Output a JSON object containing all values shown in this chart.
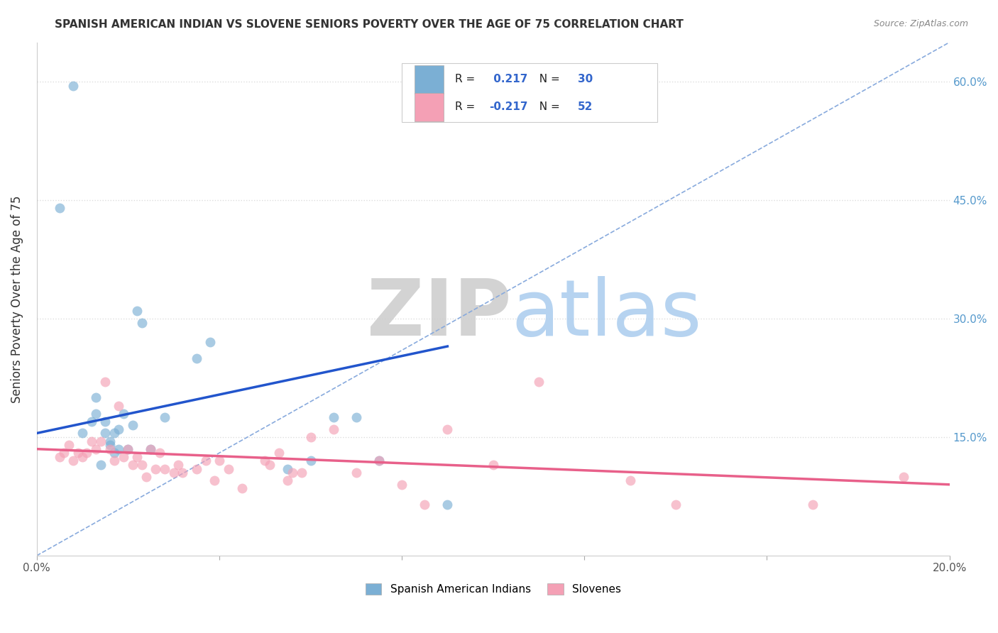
{
  "title": "SPANISH AMERICAN INDIAN VS SLOVENE SENIORS POVERTY OVER THE AGE OF 75 CORRELATION CHART",
  "source": "Source: ZipAtlas.com",
  "ylabel": "Seniors Poverty Over the Age of 75",
  "xlim": [
    0.0,
    0.2
  ],
  "ylim": [
    0.0,
    0.65
  ],
  "xticks": [
    0.0,
    0.04,
    0.08,
    0.12,
    0.16,
    0.2
  ],
  "yticks": [
    0.0,
    0.15,
    0.3,
    0.45,
    0.6
  ],
  "ytick_labels_right": [
    "",
    "15.0%",
    "30.0%",
    "45.0%",
    "60.0%"
  ],
  "xtick_labels": [
    "0.0%",
    "",
    "",
    "",
    "",
    "20.0%"
  ],
  "background_color": "#ffffff",
  "grid_color": "#dddddd",
  "watermark_ZIP": "ZIP",
  "watermark_atlas": "atlas",
  "watermark_color_ZIP": "#cccccc",
  "watermark_color_atlas": "#aaccee",
  "blue_R": 0.217,
  "blue_N": 30,
  "pink_R": -0.217,
  "pink_N": 52,
  "blue_color": "#7bafd4",
  "pink_color": "#f4a0b5",
  "blue_line_color": "#2255cc",
  "pink_line_color": "#e8608a",
  "dashed_line_color": "#88aadd",
  "legend_label_blue": "Spanish American Indians",
  "legend_label_pink": "Slovenes",
  "blue_scatter_x": [
    0.005,
    0.008,
    0.01,
    0.012,
    0.013,
    0.013,
    0.014,
    0.015,
    0.015,
    0.016,
    0.016,
    0.017,
    0.017,
    0.018,
    0.018,
    0.019,
    0.02,
    0.021,
    0.022,
    0.023,
    0.025,
    0.028,
    0.035,
    0.038,
    0.055,
    0.06,
    0.065,
    0.07,
    0.075,
    0.09
  ],
  "blue_scatter_y": [
    0.44,
    0.595,
    0.155,
    0.17,
    0.2,
    0.18,
    0.115,
    0.17,
    0.155,
    0.145,
    0.14,
    0.155,
    0.13,
    0.135,
    0.16,
    0.18,
    0.135,
    0.165,
    0.31,
    0.295,
    0.135,
    0.175,
    0.25,
    0.27,
    0.11,
    0.12,
    0.175,
    0.175,
    0.12,
    0.065
  ],
  "pink_scatter_x": [
    0.005,
    0.006,
    0.007,
    0.008,
    0.009,
    0.01,
    0.011,
    0.012,
    0.013,
    0.014,
    0.015,
    0.016,
    0.017,
    0.018,
    0.019,
    0.02,
    0.021,
    0.022,
    0.023,
    0.024,
    0.025,
    0.026,
    0.027,
    0.028,
    0.03,
    0.031,
    0.032,
    0.035,
    0.037,
    0.039,
    0.04,
    0.042,
    0.045,
    0.05,
    0.051,
    0.053,
    0.055,
    0.056,
    0.058,
    0.06,
    0.065,
    0.07,
    0.075,
    0.08,
    0.085,
    0.09,
    0.1,
    0.11,
    0.13,
    0.14,
    0.17,
    0.19
  ],
  "pink_scatter_y": [
    0.125,
    0.13,
    0.14,
    0.12,
    0.13,
    0.125,
    0.13,
    0.145,
    0.135,
    0.145,
    0.22,
    0.135,
    0.12,
    0.19,
    0.125,
    0.135,
    0.115,
    0.125,
    0.115,
    0.1,
    0.135,
    0.11,
    0.13,
    0.11,
    0.105,
    0.115,
    0.105,
    0.11,
    0.12,
    0.095,
    0.12,
    0.11,
    0.085,
    0.12,
    0.115,
    0.13,
    0.095,
    0.105,
    0.105,
    0.15,
    0.16,
    0.105,
    0.12,
    0.09,
    0.065,
    0.16,
    0.115,
    0.22,
    0.095,
    0.065,
    0.065,
    0.1
  ],
  "blue_line_x": [
    0.0,
    0.09
  ],
  "blue_line_y": [
    0.155,
    0.265
  ],
  "pink_line_x": [
    0.0,
    0.2
  ],
  "pink_line_y": [
    0.135,
    0.09
  ],
  "dashed_line_x": [
    0.0,
    0.2
  ],
  "dashed_line_y": [
    0.0,
    0.65
  ]
}
